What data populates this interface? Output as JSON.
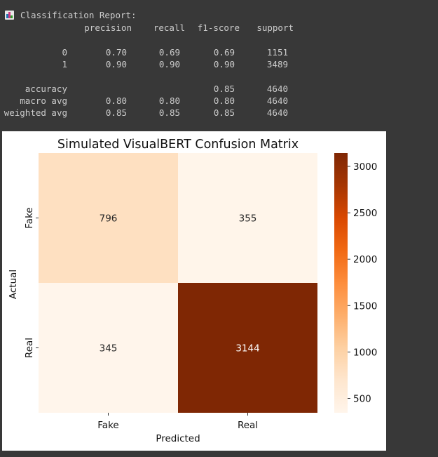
{
  "report": {
    "title": "Classification Report:",
    "icon": "bar-chart-icon",
    "headers": [
      "precision",
      "recall",
      "f1-score",
      "support"
    ],
    "rows": [
      {
        "label": "0",
        "precision": "0.70",
        "recall": "0.69",
        "f1": "0.69",
        "support": "1151"
      },
      {
        "label": "1",
        "precision": "0.90",
        "recall": "0.90",
        "f1": "0.90",
        "support": "3489"
      }
    ],
    "summary": [
      {
        "label": "accuracy",
        "precision": "",
        "recall": "",
        "f1": "0.85",
        "support": "4640"
      },
      {
        "label": "macro avg",
        "precision": "0.80",
        "recall": "0.80",
        "f1": "0.80",
        "support": "4640"
      },
      {
        "label": "weighted avg",
        "precision": "0.85",
        "recall": "0.85",
        "f1": "0.85",
        "support": "4640"
      }
    ]
  },
  "chart_data": {
    "type": "heatmap",
    "title": "Simulated VisualBERT Confusion Matrix",
    "xlabel": "Predicted",
    "ylabel": "Actual",
    "x_categories": [
      "Fake",
      "Real"
    ],
    "y_categories": [
      "Fake",
      "Real"
    ],
    "values": [
      [
        796,
        355
      ],
      [
        345,
        3144
      ]
    ],
    "colorbar": {
      "min": 345,
      "max": 3144,
      "ticks": [
        500,
        1000,
        1500,
        2000,
        2500,
        3000
      ],
      "colormap": "Oranges",
      "stops": [
        "#fff5eb",
        "#fee6ce",
        "#fdd0a2",
        "#fdae6b",
        "#fd8d3c",
        "#f16913",
        "#d94801",
        "#a63603",
        "#7f2704"
      ]
    },
    "grid": false,
    "legend": "colorbar-right"
  }
}
